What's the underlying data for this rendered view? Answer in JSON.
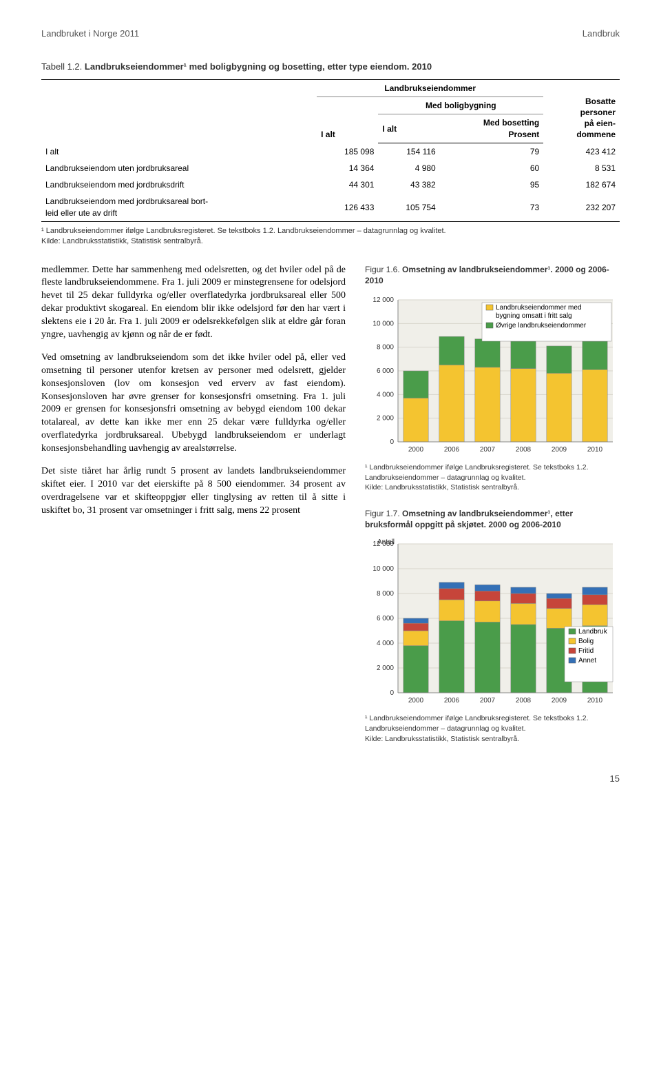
{
  "header": {
    "left": "Landbruket i Norge 2011",
    "right": "Landbruk"
  },
  "table": {
    "title_prefix": "Tabell 1.2. ",
    "title_bold": "Landbrukseiendommer¹ med boligbygning og bosetting, etter type eiendom. 2010",
    "head_group_col2": "Landbrukseiendommer",
    "head_col1": "I alt",
    "head_col2": "I alt",
    "head_col3_line1": "Med boligbygning",
    "head_col3_subA": "I alt",
    "head_col3_subB": "Med bosetting\nProsent",
    "head_col4": "Bosatte\npersoner\npå eien-\ndommene",
    "rows": [
      {
        "label": "I alt",
        "c1": "185 098",
        "c2": "154 116",
        "c3": "79",
        "c4": "423 412"
      },
      {
        "label": "Landbrukseiendom uten jordbruksareal",
        "c1": "14 364",
        "c2": "4 980",
        "c3": "60",
        "c4": "8 531"
      },
      {
        "label": "Landbrukseiendom med jordbruksdrift",
        "c1": "44 301",
        "c2": "43 382",
        "c3": "95",
        "c4": "182 674"
      },
      {
        "label": "Landbrukseiendom med jordbruksareal bort-\nleid eller ute av drift",
        "c1": "126 433",
        "c2": "105 754",
        "c3": "73",
        "c4": "232 207"
      }
    ],
    "footnote1": "¹ Landbrukseiendommer ifølge Landbruksregisteret. Se tekstboks 1.2. Landbrukseiendommer – datagrunnlag og kvalitet.",
    "footnote2": "Kilde: Landbruksstatistikk, Statistisk sentralbyrå."
  },
  "body": {
    "p1": "medlemmer. Dette har sammenheng med odelsretten, og det hviler odel på de fleste landbrukseiendommene. Fra 1. juli 2009 er minstegrensene for odelsjord hevet til 25 dekar fulldyrka og/eller overflatedyrka jordbruksareal eller 500 dekar produktivt skogareal. En eiendom blir ikke odelsjord før den har vært i slektens eie i 20 år. Fra 1. juli 2009 er odelsrekkefølgen slik at eldre går foran yngre, uavhengig av kjønn og når de er født.",
    "p2": "Ved omsetning av landbrukseiendom som det ikke hviler odel på, eller ved omsetning til personer utenfor kretsen av personer med odelsrett, gjelder konsesjonsloven (lov om konsesjon ved erverv av fast eiendom). Konsesjonsloven har øvre grenser for konsesjonsfri omsetning. Fra 1. juli 2009 er grensen for konsesjonsfri omsetning av bebygd eiendom 100 dekar totalareal, av dette kan ikke mer enn 25 dekar være fulldyrka og/eller overflatedyrka jordbruksareal. Ubebygd landbrukseiendom er underlagt konsesjonsbehandling uavhengig av arealstørrelse.",
    "p3": "Det siste tiåret har årlig rundt 5 prosent av landets landbrukseiendommer skiftet eier. I 2010 var det eierskifte på 8 500 eiendommer. 34 prosent av overdragelsene var et skifteoppgjør eller tinglysing av retten til å sitte i uskiftet bo, 31 prosent var omsetninger i fritt salg, mens 22 prosent"
  },
  "chart16": {
    "title_prefix": "Figur 1.6. ",
    "title_bold": "Omsetning av landbrukseiendommer¹. 2000 og 2006-2010",
    "categories": [
      "2000",
      "2006",
      "2007",
      "2008",
      "2009",
      "2010"
    ],
    "series": [
      {
        "name": "Landbrukseiendommer med bygning omsatt i fritt salg",
        "color": "#f4c430",
        "values": [
          3700,
          6500,
          6300,
          6200,
          5800,
          6100
        ]
      },
      {
        "name": "Øvrige landbrukseiendommer",
        "color": "#4a9c4a",
        "values": [
          2300,
          2400,
          2400,
          2300,
          2300,
          2400
        ]
      }
    ],
    "ylim": [
      0,
      12000
    ],
    "ytick_step": 2000,
    "ylabel": "",
    "background": "#f0efe9",
    "grid_color": "#d7d5cb",
    "footnote1": "¹ Landbrukseiendommer ifølge Landbruksregisteret. Se tekstboks 1.2. Landbrukseiendommer – datagrunnlag og kvalitet.",
    "footnote2": "Kilde: Landbruksstatistikk, Statistisk sentralbyrå."
  },
  "chart17": {
    "title_prefix": "Figur 1.7. ",
    "title_bold": "Omsetning av landbrukseiendommer¹, etter bruksformål oppgitt på skjøtet. 2000 og 2006-2010",
    "ylabel_top": "Antall",
    "categories": [
      "2000",
      "2006",
      "2007",
      "2008",
      "2009",
      "2010"
    ],
    "series": [
      {
        "name": "Landbruk",
        "color": "#4a9c4a",
        "values": [
          3800,
          5800,
          5700,
          5500,
          5200,
          5400
        ]
      },
      {
        "name": "Bolig",
        "color": "#f4c430",
        "values": [
          1200,
          1700,
          1700,
          1700,
          1600,
          1700
        ]
      },
      {
        "name": "Fritid",
        "color": "#c6453a",
        "values": [
          600,
          900,
          800,
          800,
          800,
          800
        ]
      },
      {
        "name": "Annet",
        "color": "#3470b6",
        "values": [
          400,
          500,
          500,
          500,
          400,
          600
        ]
      }
    ],
    "ylim": [
      0,
      12000
    ],
    "ytick_step": 2000,
    "background": "#f0efe9",
    "grid_color": "#d7d5cb",
    "footnote1": "¹ Landbrukseiendommer ifølge Landbruksregisteret. Se tekstboks 1.2. Landbrukseiendommer – datagrunnlag og kvalitet.",
    "footnote2": "Kilde: Landbruksstatistikk, Statistisk sentralbyrå."
  },
  "pagenum": "15"
}
